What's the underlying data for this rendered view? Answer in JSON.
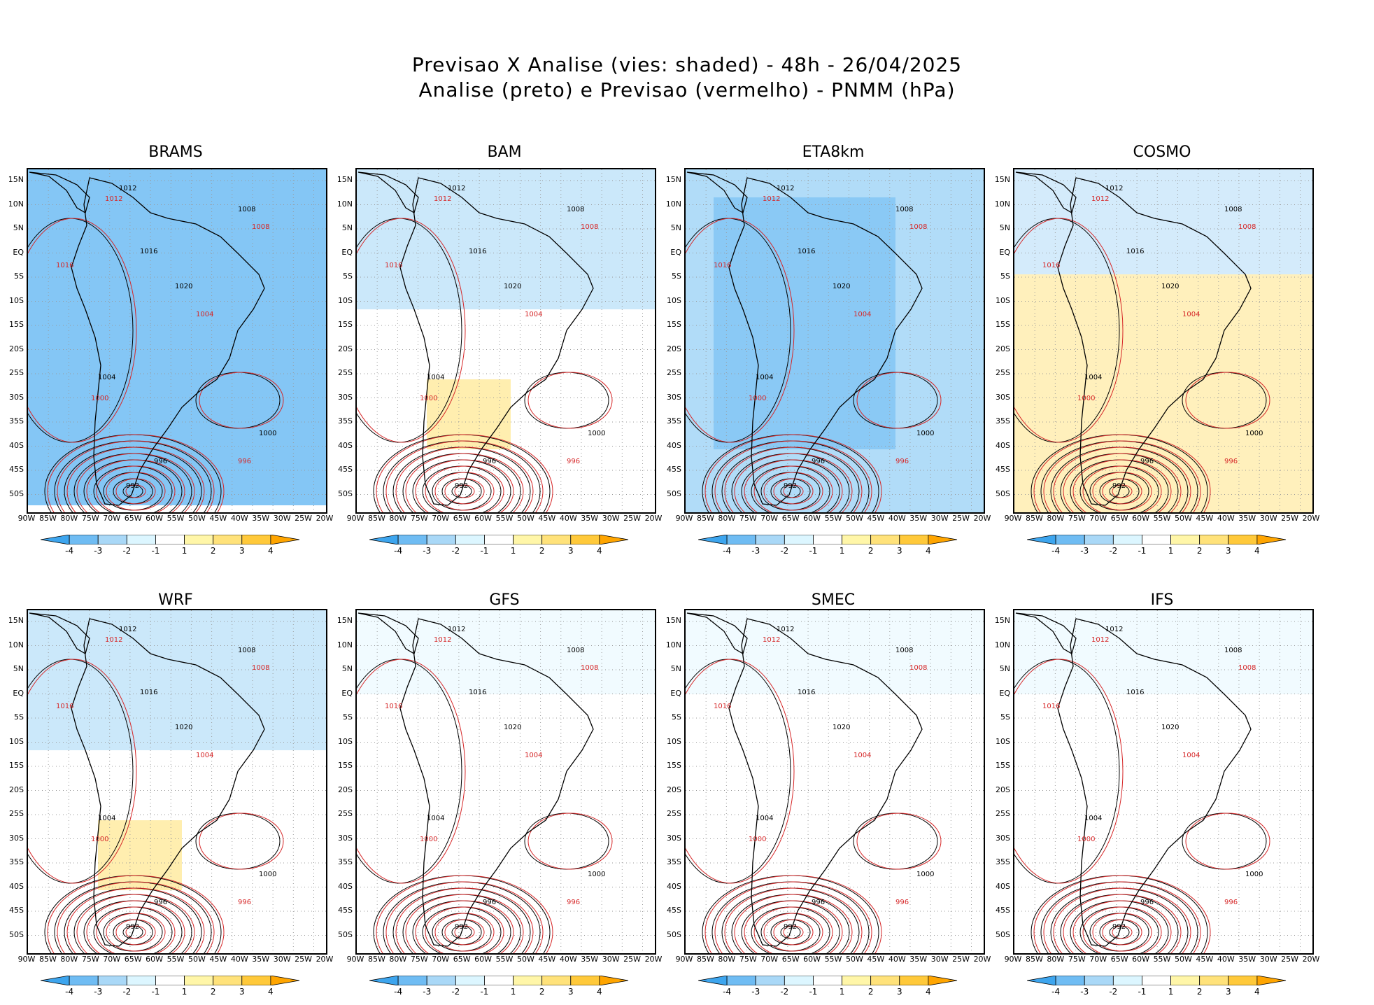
{
  "title_line1": "Previsao X Analise (vies: shaded) - 48h - 26/04/2025",
  "title_line2": "Analise (preto) e Previsao (vermelho) - PNMM (hPa)",
  "lat_labels": [
    "15N",
    "10N",
    "5N",
    "EQ",
    "5S",
    "10S",
    "15S",
    "20S",
    "25S",
    "30S",
    "35S",
    "40S",
    "45S",
    "50S"
  ],
  "lon_labels": [
    "90W",
    "85W",
    "80W",
    "75W",
    "70W",
    "65W",
    "60W",
    "55W",
    "50W",
    "45W",
    "40W",
    "35W",
    "30W",
    "25W",
    "20W"
  ],
  "colorbar": {
    "labels": [
      "-4",
      "-3",
      "-2",
      "-1",
      "1",
      "2",
      "3",
      "4"
    ],
    "colors": [
      "#3da5ee",
      "#6fbcf3",
      "#a9d8f7",
      "#dcf6ff",
      "#ffffff",
      "#fff6a8",
      "#ffe27a",
      "#ffc93a",
      "#ffa500"
    ]
  },
  "panels": [
    {
      "name": "BRAMS",
      "bias": "neg-strong"
    },
    {
      "name": "BAM",
      "bias": "mixed"
    },
    {
      "name": "ETA8km",
      "bias": "neg"
    },
    {
      "name": "COSMO",
      "bias": "pos"
    },
    {
      "name": "WRF",
      "bias": "mixed"
    },
    {
      "name": "GFS",
      "bias": "weak"
    },
    {
      "name": "SMEC",
      "bias": "weak"
    },
    {
      "name": "IFS",
      "bias": "weak"
    }
  ],
  "contour_labels": {
    "analysis": [
      "1012",
      "1008",
      "1016",
      "1020",
      "1004",
      "1000",
      "996",
      "992"
    ],
    "forecast": [
      "1012",
      "1008",
      "1016",
      "1004",
      "1000",
      "996"
    ]
  }
}
